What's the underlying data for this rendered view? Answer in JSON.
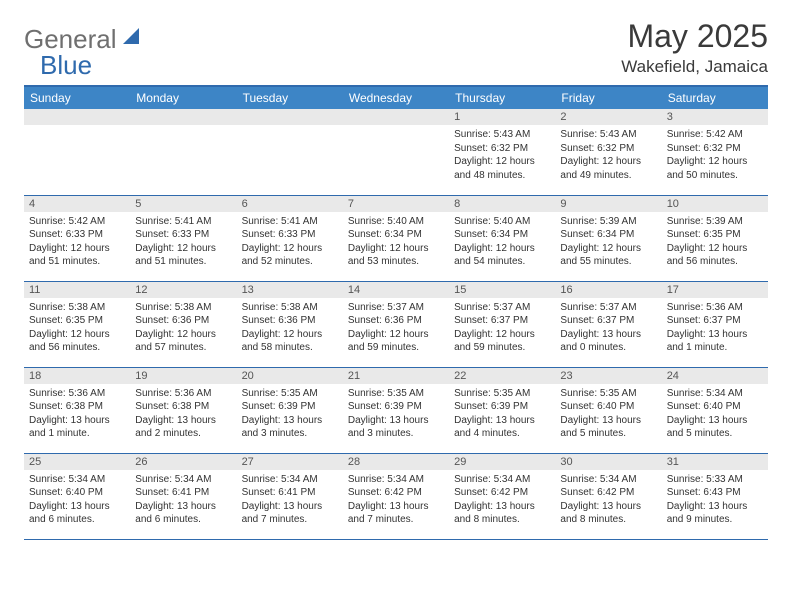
{
  "logo": {
    "part1": "General",
    "part2": "Blue"
  },
  "title": "May 2025",
  "location": "Wakefield, Jamaica",
  "colors": {
    "header_bg": "#3d85c6",
    "border": "#2f6aad",
    "daynum_bg": "#e9e9e9",
    "text": "#333333",
    "logo_gray": "#6f6f6f",
    "logo_blue": "#2f6aad"
  },
  "weekdays": [
    "Sunday",
    "Monday",
    "Tuesday",
    "Wednesday",
    "Thursday",
    "Friday",
    "Saturday"
  ],
  "weeks": [
    [
      {
        "n": "",
        "l1": "",
        "l2": "",
        "l3": "",
        "l4": ""
      },
      {
        "n": "",
        "l1": "",
        "l2": "",
        "l3": "",
        "l4": ""
      },
      {
        "n": "",
        "l1": "",
        "l2": "",
        "l3": "",
        "l4": ""
      },
      {
        "n": "",
        "l1": "",
        "l2": "",
        "l3": "",
        "l4": ""
      },
      {
        "n": "1",
        "l1": "Sunrise: 5:43 AM",
        "l2": "Sunset: 6:32 PM",
        "l3": "Daylight: 12 hours",
        "l4": "and 48 minutes."
      },
      {
        "n": "2",
        "l1": "Sunrise: 5:43 AM",
        "l2": "Sunset: 6:32 PM",
        "l3": "Daylight: 12 hours",
        "l4": "and 49 minutes."
      },
      {
        "n": "3",
        "l1": "Sunrise: 5:42 AM",
        "l2": "Sunset: 6:32 PM",
        "l3": "Daylight: 12 hours",
        "l4": "and 50 minutes."
      }
    ],
    [
      {
        "n": "4",
        "l1": "Sunrise: 5:42 AM",
        "l2": "Sunset: 6:33 PM",
        "l3": "Daylight: 12 hours",
        "l4": "and 51 minutes."
      },
      {
        "n": "5",
        "l1": "Sunrise: 5:41 AM",
        "l2": "Sunset: 6:33 PM",
        "l3": "Daylight: 12 hours",
        "l4": "and 51 minutes."
      },
      {
        "n": "6",
        "l1": "Sunrise: 5:41 AM",
        "l2": "Sunset: 6:33 PM",
        "l3": "Daylight: 12 hours",
        "l4": "and 52 minutes."
      },
      {
        "n": "7",
        "l1": "Sunrise: 5:40 AM",
        "l2": "Sunset: 6:34 PM",
        "l3": "Daylight: 12 hours",
        "l4": "and 53 minutes."
      },
      {
        "n": "8",
        "l1": "Sunrise: 5:40 AM",
        "l2": "Sunset: 6:34 PM",
        "l3": "Daylight: 12 hours",
        "l4": "and 54 minutes."
      },
      {
        "n": "9",
        "l1": "Sunrise: 5:39 AM",
        "l2": "Sunset: 6:34 PM",
        "l3": "Daylight: 12 hours",
        "l4": "and 55 minutes."
      },
      {
        "n": "10",
        "l1": "Sunrise: 5:39 AM",
        "l2": "Sunset: 6:35 PM",
        "l3": "Daylight: 12 hours",
        "l4": "and 56 minutes."
      }
    ],
    [
      {
        "n": "11",
        "l1": "Sunrise: 5:38 AM",
        "l2": "Sunset: 6:35 PM",
        "l3": "Daylight: 12 hours",
        "l4": "and 56 minutes."
      },
      {
        "n": "12",
        "l1": "Sunrise: 5:38 AM",
        "l2": "Sunset: 6:36 PM",
        "l3": "Daylight: 12 hours",
        "l4": "and 57 minutes."
      },
      {
        "n": "13",
        "l1": "Sunrise: 5:38 AM",
        "l2": "Sunset: 6:36 PM",
        "l3": "Daylight: 12 hours",
        "l4": "and 58 minutes."
      },
      {
        "n": "14",
        "l1": "Sunrise: 5:37 AM",
        "l2": "Sunset: 6:36 PM",
        "l3": "Daylight: 12 hours",
        "l4": "and 59 minutes."
      },
      {
        "n": "15",
        "l1": "Sunrise: 5:37 AM",
        "l2": "Sunset: 6:37 PM",
        "l3": "Daylight: 12 hours",
        "l4": "and 59 minutes."
      },
      {
        "n": "16",
        "l1": "Sunrise: 5:37 AM",
        "l2": "Sunset: 6:37 PM",
        "l3": "Daylight: 13 hours",
        "l4": "and 0 minutes."
      },
      {
        "n": "17",
        "l1": "Sunrise: 5:36 AM",
        "l2": "Sunset: 6:37 PM",
        "l3": "Daylight: 13 hours",
        "l4": "and 1 minute."
      }
    ],
    [
      {
        "n": "18",
        "l1": "Sunrise: 5:36 AM",
        "l2": "Sunset: 6:38 PM",
        "l3": "Daylight: 13 hours",
        "l4": "and 1 minute."
      },
      {
        "n": "19",
        "l1": "Sunrise: 5:36 AM",
        "l2": "Sunset: 6:38 PM",
        "l3": "Daylight: 13 hours",
        "l4": "and 2 minutes."
      },
      {
        "n": "20",
        "l1": "Sunrise: 5:35 AM",
        "l2": "Sunset: 6:39 PM",
        "l3": "Daylight: 13 hours",
        "l4": "and 3 minutes."
      },
      {
        "n": "21",
        "l1": "Sunrise: 5:35 AM",
        "l2": "Sunset: 6:39 PM",
        "l3": "Daylight: 13 hours",
        "l4": "and 3 minutes."
      },
      {
        "n": "22",
        "l1": "Sunrise: 5:35 AM",
        "l2": "Sunset: 6:39 PM",
        "l3": "Daylight: 13 hours",
        "l4": "and 4 minutes."
      },
      {
        "n": "23",
        "l1": "Sunrise: 5:35 AM",
        "l2": "Sunset: 6:40 PM",
        "l3": "Daylight: 13 hours",
        "l4": "and 5 minutes."
      },
      {
        "n": "24",
        "l1": "Sunrise: 5:34 AM",
        "l2": "Sunset: 6:40 PM",
        "l3": "Daylight: 13 hours",
        "l4": "and 5 minutes."
      }
    ],
    [
      {
        "n": "25",
        "l1": "Sunrise: 5:34 AM",
        "l2": "Sunset: 6:40 PM",
        "l3": "Daylight: 13 hours",
        "l4": "and 6 minutes."
      },
      {
        "n": "26",
        "l1": "Sunrise: 5:34 AM",
        "l2": "Sunset: 6:41 PM",
        "l3": "Daylight: 13 hours",
        "l4": "and 6 minutes."
      },
      {
        "n": "27",
        "l1": "Sunrise: 5:34 AM",
        "l2": "Sunset: 6:41 PM",
        "l3": "Daylight: 13 hours",
        "l4": "and 7 minutes."
      },
      {
        "n": "28",
        "l1": "Sunrise: 5:34 AM",
        "l2": "Sunset: 6:42 PM",
        "l3": "Daylight: 13 hours",
        "l4": "and 7 minutes."
      },
      {
        "n": "29",
        "l1": "Sunrise: 5:34 AM",
        "l2": "Sunset: 6:42 PM",
        "l3": "Daylight: 13 hours",
        "l4": "and 8 minutes."
      },
      {
        "n": "30",
        "l1": "Sunrise: 5:34 AM",
        "l2": "Sunset: 6:42 PM",
        "l3": "Daylight: 13 hours",
        "l4": "and 8 minutes."
      },
      {
        "n": "31",
        "l1": "Sunrise: 5:33 AM",
        "l2": "Sunset: 6:43 PM",
        "l3": "Daylight: 13 hours",
        "l4": "and 9 minutes."
      }
    ]
  ]
}
